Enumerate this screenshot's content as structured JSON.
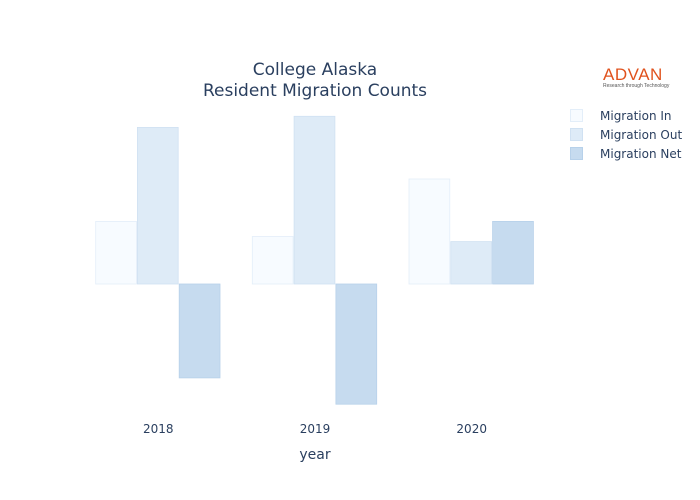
{
  "title": {
    "line1": "College Alaska",
    "line2": "Resident Migration Counts"
  },
  "logo": {
    "text": "ADVAN",
    "tagline": "Research through Technology"
  },
  "chart_data": {
    "type": "bar",
    "categories": [
      "2018",
      "2019",
      "2020"
    ],
    "series": [
      {
        "name": "Migration In",
        "values": [
          62,
          47,
          104
        ],
        "color": "#f7fbff",
        "stroke": "#e3eef9"
      },
      {
        "name": "Migration Out",
        "values": [
          155,
          166,
          42
        ],
        "color": "#deebf7",
        "stroke": "#d0e1f2"
      },
      {
        "name": "Migration Net",
        "values": [
          -93,
          -119,
          62
        ],
        "color": "#c6dbef",
        "stroke": "#b7d1ea"
      }
    ],
    "xlabel": "year",
    "ylabel": "",
    "ylim": [
      -125,
      170
    ],
    "grid": false,
    "y_axis_visible": false,
    "legend": "top-right"
  }
}
